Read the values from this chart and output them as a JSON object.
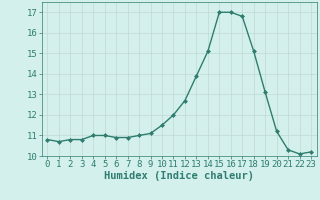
{
  "x": [
    0,
    1,
    2,
    3,
    4,
    5,
    6,
    7,
    8,
    9,
    10,
    11,
    12,
    13,
    14,
    15,
    16,
    17,
    18,
    19,
    20,
    21,
    22,
    23
  ],
  "y": [
    10.8,
    10.7,
    10.8,
    10.8,
    11.0,
    11.0,
    10.9,
    10.9,
    11.0,
    11.1,
    11.5,
    12.0,
    12.7,
    13.9,
    15.1,
    17.0,
    17.0,
    16.8,
    15.1,
    13.1,
    11.2,
    10.3,
    10.1,
    10.2
  ],
  "line_color": "#2e7d6e",
  "marker": "D",
  "marker_size": 2.0,
  "bg_color": "#d4f0ec",
  "grid_color": "#c0d8d4",
  "xlabel": "Humidex (Indice chaleur)",
  "xlim": [
    -0.5,
    23.5
  ],
  "ylim": [
    10,
    17.5
  ],
  "yticks": [
    10,
    11,
    12,
    13,
    14,
    15,
    16,
    17
  ],
  "xticks": [
    0,
    1,
    2,
    3,
    4,
    5,
    6,
    7,
    8,
    9,
    10,
    11,
    12,
    13,
    14,
    15,
    16,
    17,
    18,
    19,
    20,
    21,
    22,
    23
  ],
  "tick_color": "#2e7d6e",
  "label_color": "#2e7d6e",
  "font_size": 6.5,
  "xlabel_fontsize": 7.5,
  "linewidth": 1.0
}
